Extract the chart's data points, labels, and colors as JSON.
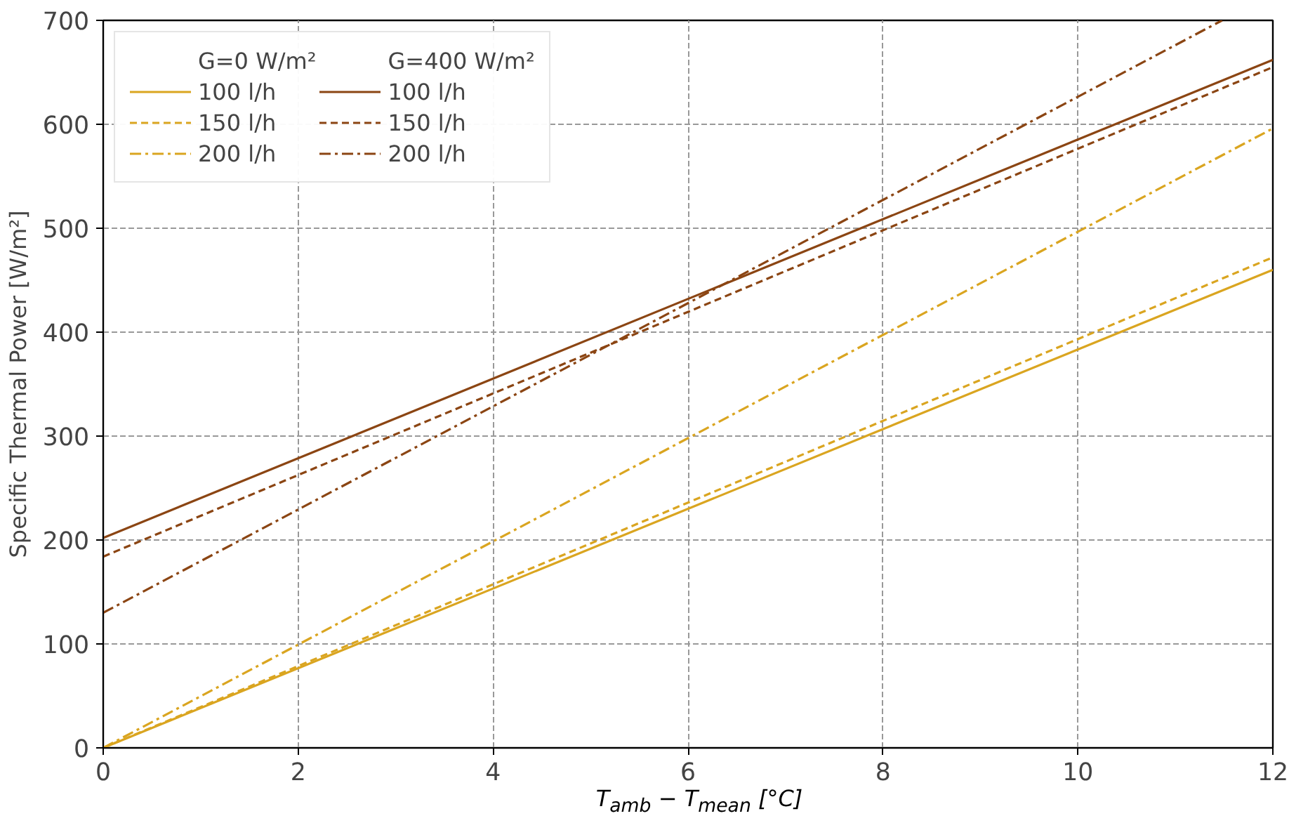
{
  "chart_data": {
    "type": "line",
    "xlabel": "T$_{amb}$ − T$_{mean}$ [°C]",
    "ylabel": "Specific Thermal Power [W/m²]",
    "legend_title": [
      "G=0 W/m²",
      "G=400 W/m²"
    ],
    "xlim": [
      0,
      12
    ],
    "xticks": [
      0,
      2,
      4,
      6,
      8,
      10,
      12
    ],
    "ylim": [
      0,
      700
    ],
    "yticks": [
      0,
      100,
      200,
      300,
      400,
      500,
      600,
      700
    ],
    "grid": true,
    "legend": "top left",
    "series": [
      {
        "name": "100 l/h",
        "color": "#daa520",
        "line_style": "solid",
        "x": [
          0,
          12
        ],
        "values": [
          0,
          460
        ]
      },
      {
        "name": "150 l/h",
        "color": "#daa520",
        "line_style": "dashed",
        "x": [
          0,
          12
        ],
        "values": [
          0,
          472
        ]
      },
      {
        "name": "200 l/h",
        "color": "#daa520",
        "line_style": "dashdot",
        "x": [
          0,
          12
        ],
        "values": [
          0,
          596
        ]
      },
      {
        "name": "100 l/h",
        "color": "#8b4513",
        "line_style": "solid",
        "x": [
          0,
          12
        ],
        "values": [
          202,
          662
        ]
      },
      {
        "name": "150 l/h",
        "color": "#8b4513",
        "line_style": "dashed",
        "x": [
          0,
          12
        ],
        "values": [
          184,
          655
        ]
      },
      {
        "name": "200 l/h",
        "color": "#8b4513",
        "line_style": "dashdot",
        "x": [
          0,
          11.48
        ],
        "values": [
          130,
          700
        ]
      }
    ]
  }
}
